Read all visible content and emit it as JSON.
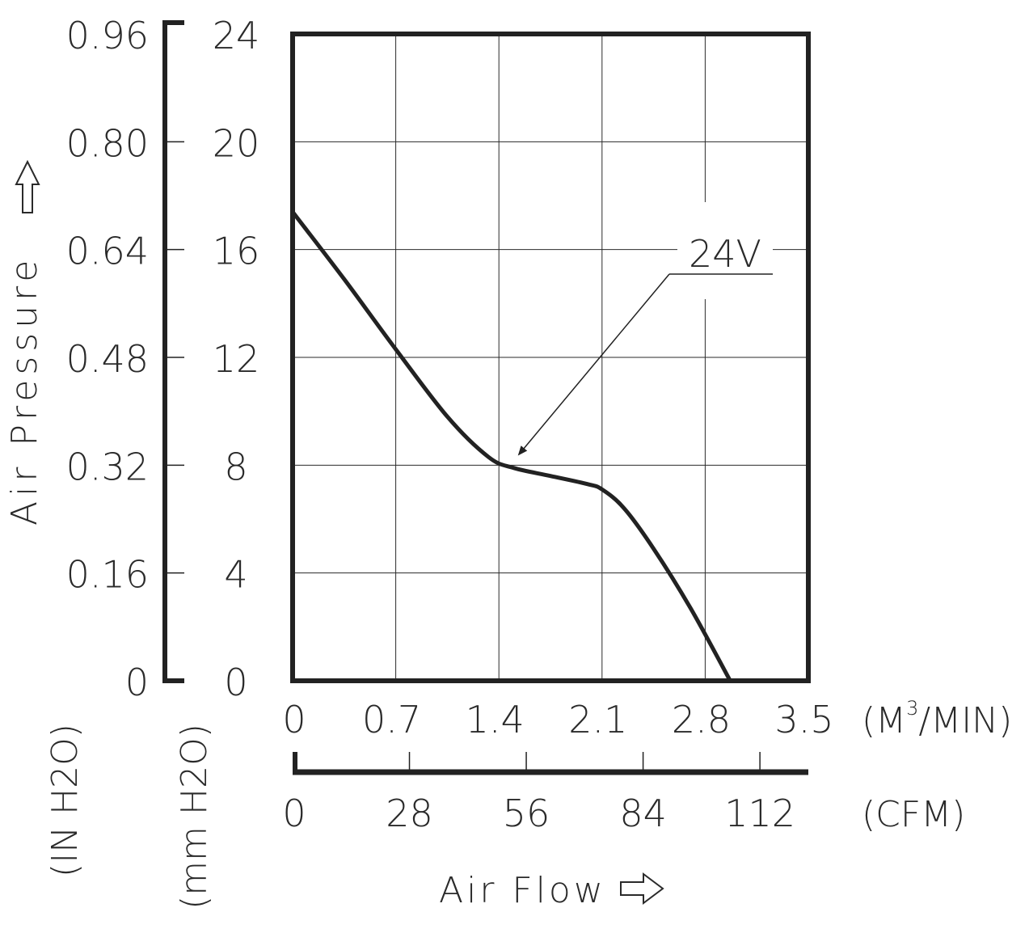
{
  "chart_data": {
    "type": "line",
    "series": [
      {
        "name": "24V",
        "x": [
          0,
          0.35,
          0.7,
          1.05,
          1.33,
          1.5,
          1.75,
          2.0,
          2.1,
          2.25,
          2.45,
          2.7,
          2.97
        ],
        "y": [
          17.4,
          14.9,
          12.3,
          9.8,
          8.3,
          7.9,
          7.6,
          7.3,
          7.1,
          6.4,
          4.9,
          2.7,
          0
        ]
      }
    ],
    "annotation": "24V",
    "xlim": [
      0,
      3.5
    ],
    "ylim": [
      0,
      24
    ],
    "x_ticks_m3min": [
      "0",
      "0.7",
      "1.4",
      "2.1",
      "2.8",
      "3.5"
    ],
    "x_unit_m3min": {
      "prefix": "(M",
      "sup": "3",
      "suffix": "/MIN)"
    },
    "x_ticks_cfm": [
      "0",
      "28",
      "56",
      "84",
      "112"
    ],
    "x_unit_cfm": "(CFM)",
    "xlabel": "Air Flow",
    "y_ticks_mmh2o": [
      "0",
      "4",
      "8",
      "12",
      "16",
      "20",
      "24"
    ],
    "y_unit_mmh2o": "(mm H2O)",
    "y_ticks_inh2o": [
      "0",
      "0.16",
      "0.32",
      "0.48",
      "0.64",
      "0.80",
      "0.96"
    ],
    "y_unit_inh2o": "(IN H2O)",
    "ylabel": "Air Pressure",
    "grid": true
  }
}
